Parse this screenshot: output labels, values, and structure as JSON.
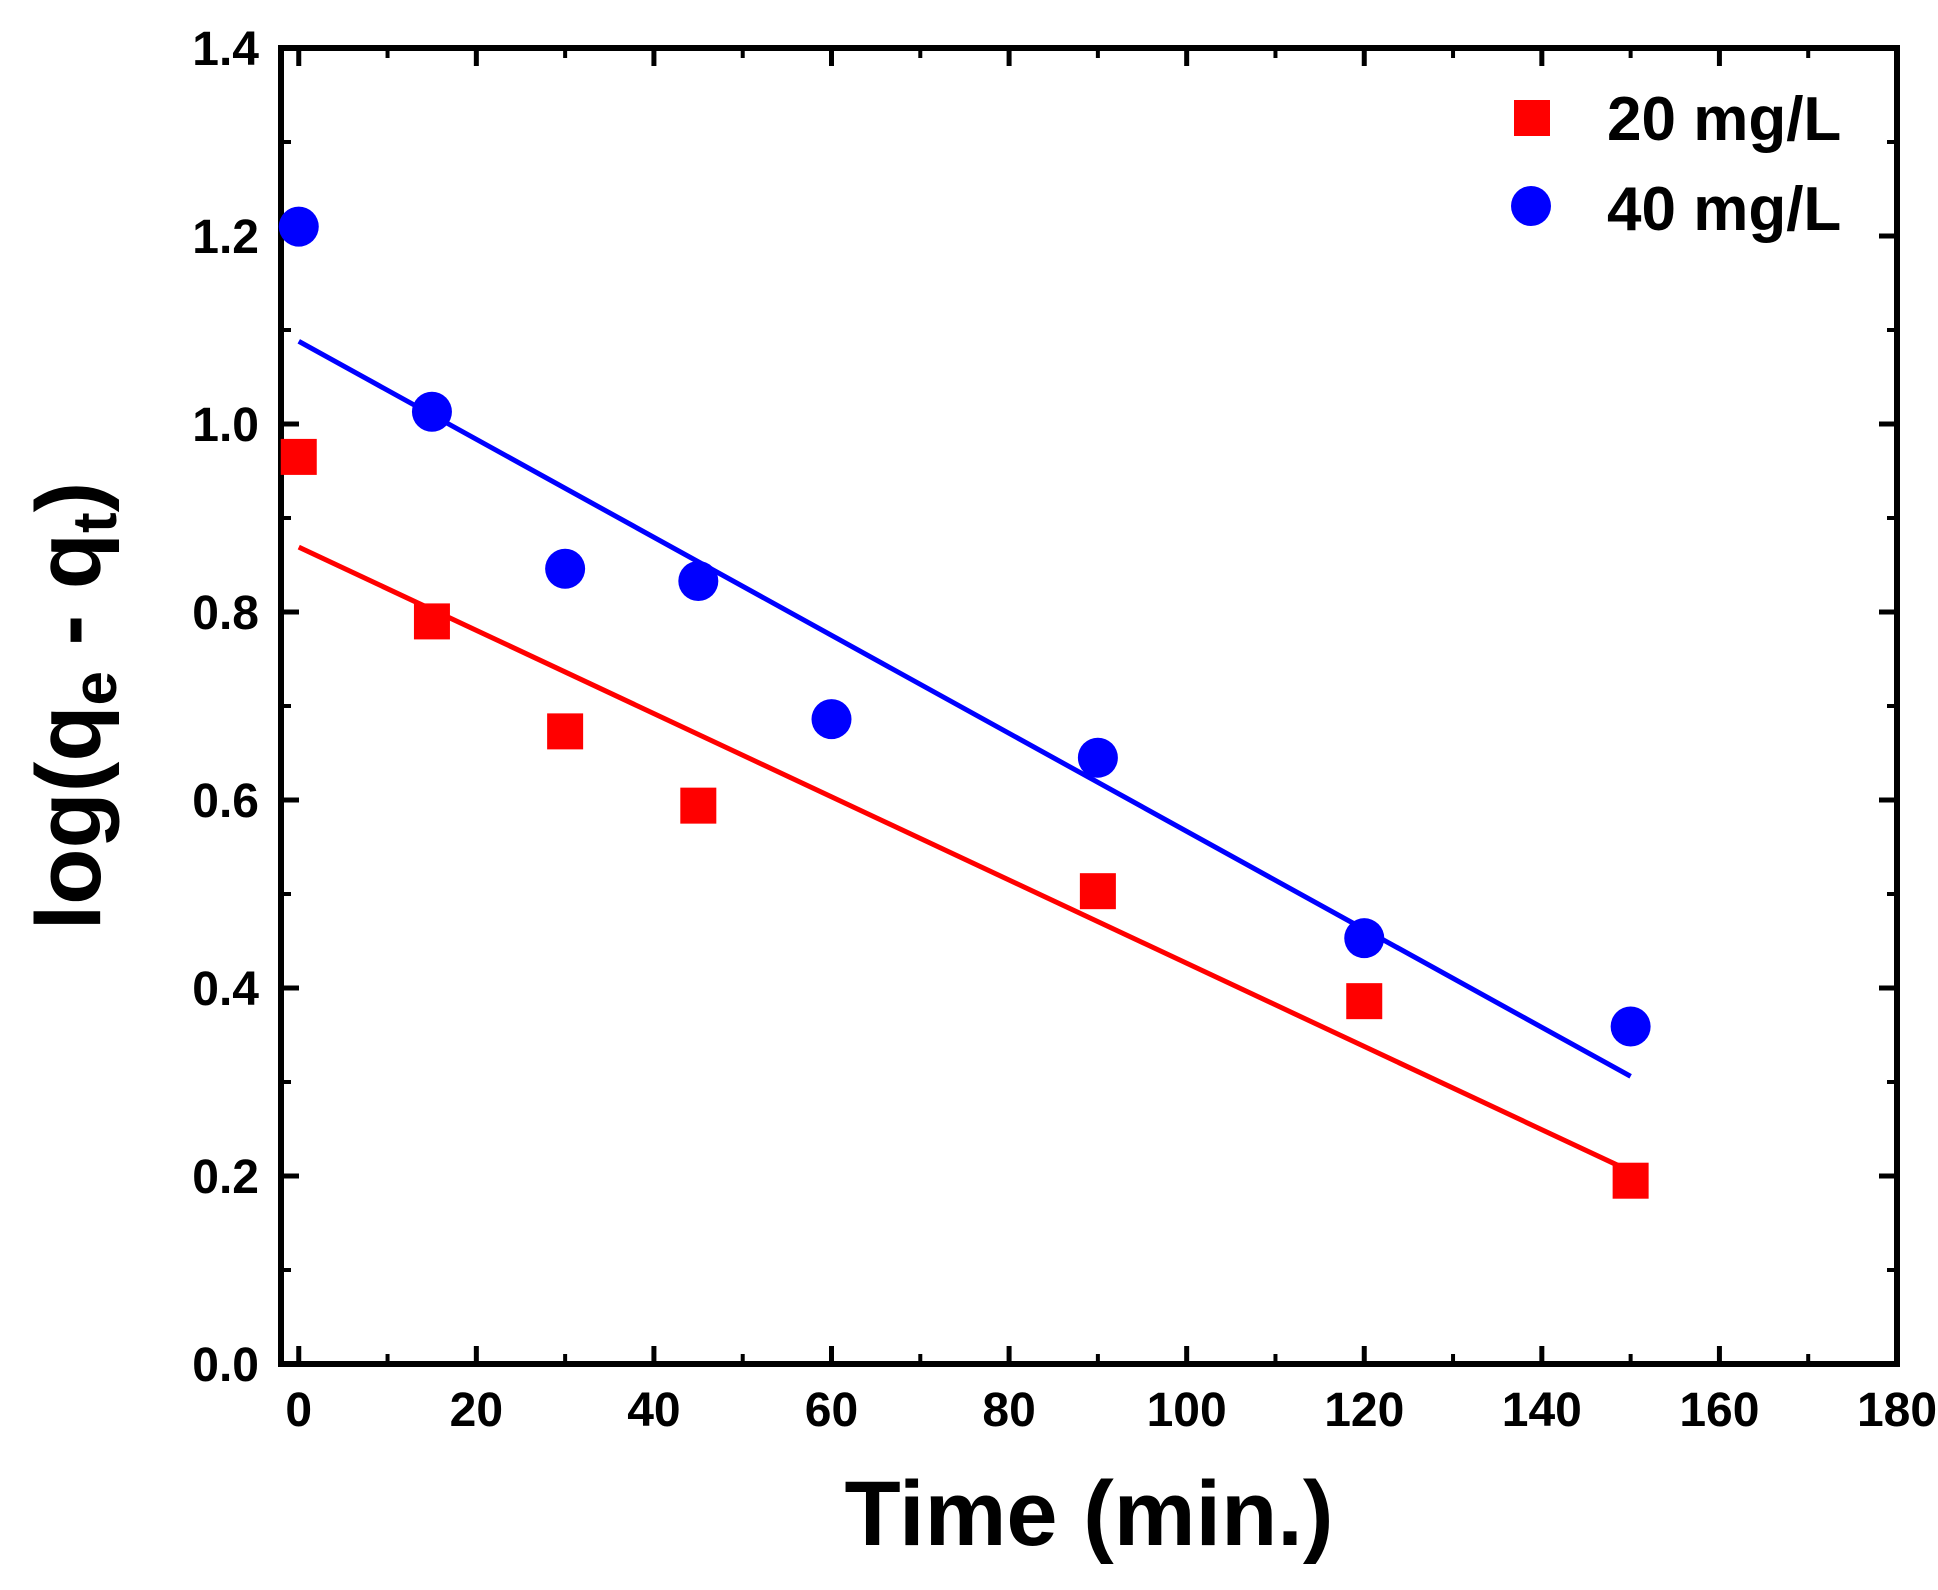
{
  "chart_data": {
    "type": "scatter",
    "title": "",
    "xlabel": "Time (min.)",
    "ylabel": {
      "prefix": "log(q",
      "sub1": "e",
      "middle": " - q",
      "sub2": "t",
      "suffix": ")"
    },
    "xlim": [
      -2,
      180
    ],
    "ylim": [
      0.0,
      1.4
    ],
    "x_ticks": [
      0,
      20,
      40,
      60,
      80,
      100,
      120,
      140,
      160,
      180
    ],
    "x_tick_labels": [
      "0",
      "20",
      "40",
      "60",
      "80",
      "100",
      "120",
      "140",
      "160",
      "180"
    ],
    "x_minor_step": 10,
    "y_ticks": [
      0.0,
      0.2,
      0.4,
      0.6,
      0.8,
      1.0,
      1.2,
      1.4
    ],
    "y_tick_labels": [
      "0.0",
      "0.2",
      "0.4",
      "0.6",
      "0.8",
      "1.0",
      "1.2",
      "1.4"
    ],
    "y_minor_step": 0.1,
    "grid": false,
    "legend_position": "top-right",
    "series": [
      {
        "name": "20 mg/L",
        "marker": "square",
        "color": "#ff0000",
        "x": [
          0,
          15,
          30,
          45,
          90,
          120,
          150
        ],
        "y": [
          0.965,
          0.79,
          0.673,
          0.594,
          0.503,
          0.386,
          0.195
        ],
        "fit": {
          "x": [
            0,
            150
          ],
          "y": [
            0.869,
            0.205
          ]
        }
      },
      {
        "name": "40 mg/L",
        "marker": "circle",
        "color": "#0000ff",
        "x": [
          0,
          15,
          30,
          45,
          60,
          90,
          120,
          150
        ],
        "y": [
          1.21,
          1.013,
          0.846,
          0.833,
          0.686,
          0.645,
          0.453,
          0.359
        ],
        "fit": {
          "x": [
            0,
            150
          ],
          "y": [
            1.088,
            0.306
          ]
        }
      }
    ]
  }
}
